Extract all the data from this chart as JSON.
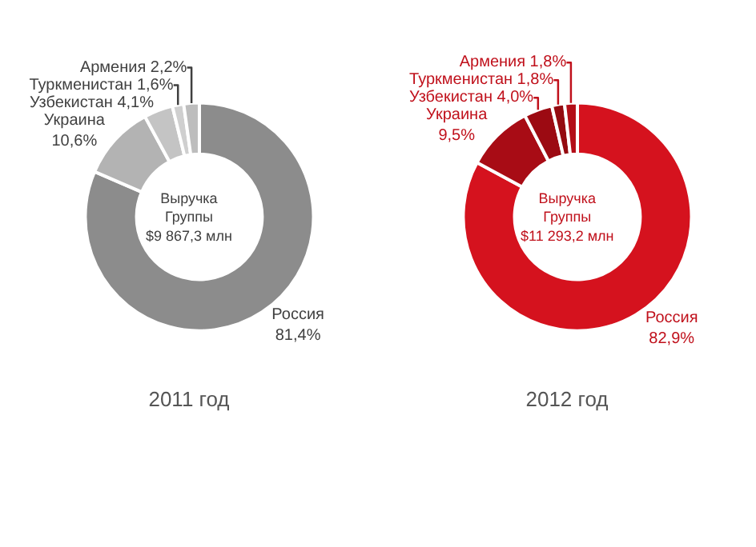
{
  "chart_data": [
    {
      "type": "donut",
      "title": "2011 год",
      "annotations": [
        "Выручка\nГруппы\n$9 867,3 млн"
      ],
      "categories": [
        "Россия",
        "Украина",
        "Узбекистан",
        "Туркменистан",
        "Армения"
      ],
      "values": [
        81.4,
        10.6,
        4.1,
        1.6,
        2.2
      ],
      "value_labels": [
        "81,4%",
        "10,6%",
        "4,1%",
        "1,6%",
        "2,2%"
      ],
      "colors": [
        "#8c8c8c",
        "#b3b3b3",
        "#c4c4c4",
        "#cfcfcf",
        "#bdbdbd"
      ]
    },
    {
      "type": "donut",
      "title": "2012 год",
      "annotations": [
        "Выручка\nГруппы\n$11 293,2 млн"
      ],
      "categories": [
        "Россия",
        "Украина",
        "Узбекистан",
        "Туркменистан",
        "Армения"
      ],
      "values": [
        82.9,
        9.5,
        4.0,
        1.8,
        1.8
      ],
      "value_labels": [
        "82,9%",
        "9,5%",
        "4,0%",
        "1,8%",
        "1,8%"
      ],
      "colors": [
        "#d5121e",
        "#a80c15",
        "#9c0a12",
        "#940a10",
        "#b30e18"
      ]
    }
  ]
}
